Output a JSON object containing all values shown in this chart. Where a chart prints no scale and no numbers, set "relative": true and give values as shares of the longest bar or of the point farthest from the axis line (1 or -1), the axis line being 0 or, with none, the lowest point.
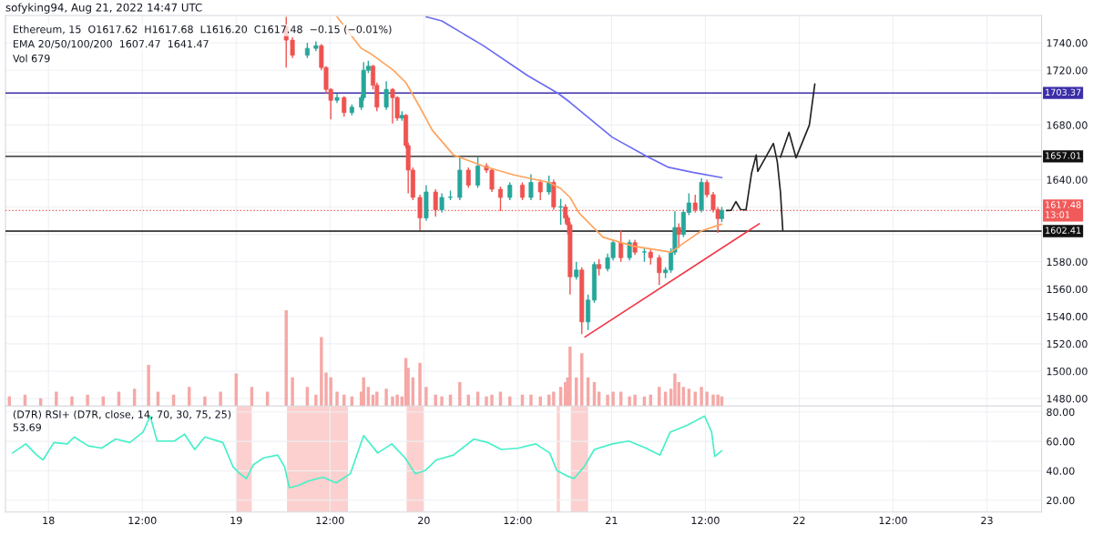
{
  "chart_data": [
    {
      "type": "candlestick",
      "title": "sofyking94, Aug 21, 2022 14:47 UTC",
      "annotations": [
        "Ethereum, 15  O1617.62  H1617.68  L1616.20  C1617.48  −0.15 (−0.01%)",
        "EMA 20/50/100/200  1607.47  1641.47",
        "Vol 679"
      ],
      "x": [
        "2022-08-19T06:24",
        "2022-08-19T07:12",
        "2022-08-19T09:06",
        "2022-08-19T10:12",
        "2022-08-19T10:54",
        "2022-08-19T11:30",
        "2022-08-19T12:06",
        "2022-08-19T12:54",
        "2022-08-19T13:48",
        "2022-08-19T14:48",
        "2022-08-19T16:00",
        "2022-08-19T16:18",
        "2022-08-19T16:54",
        "2022-08-19T17:30",
        "2022-08-19T18:00",
        "2022-08-19T19:12",
        "2022-08-19T20:00",
        "2022-08-19T20:36",
        "2022-08-19T21:12",
        "2022-08-19T21:42",
        "2022-08-19T22:00",
        "2022-08-19T22:36",
        "2022-08-19T23:30",
        "2022-08-20T00:18",
        "2022-08-20T01:30",
        "2022-08-20T02:18",
        "2022-08-20T03:24",
        "2022-08-20T04:36",
        "2022-08-20T05:42",
        "2022-08-20T06:54",
        "2022-08-20T08:00",
        "2022-08-20T08:42",
        "2022-08-20T09:48",
        "2022-08-20T11:00",
        "2022-08-20T12:36",
        "2022-08-20T13:42",
        "2022-08-20T14:54",
        "2022-08-20T16:00",
        "2022-08-20T16:36",
        "2022-08-20T17:30",
        "2022-08-20T18:06",
        "2022-08-20T18:24",
        "2022-08-20T18:42",
        "2022-08-20T19:30",
        "2022-08-20T20:12",
        "2022-08-20T21:00",
        "2022-08-20T21:48",
        "2022-08-20T22:24",
        "2022-08-20T23:30",
        "2022-08-21T00:12",
        "2022-08-21T01:12",
        "2022-08-21T02:18",
        "2022-08-21T03:00",
        "2022-08-21T04:12",
        "2022-08-21T05:00",
        "2022-08-21T06:06",
        "2022-08-21T06:54",
        "2022-08-21T07:36",
        "2022-08-21T08:06",
        "2022-08-21T08:36",
        "2022-08-21T09:12",
        "2022-08-21T09:54",
        "2022-08-21T10:42",
        "2022-08-21T11:30",
        "2022-08-21T12:12",
        "2022-08-21T13:00",
        "2022-08-21T13:36",
        "2022-08-21T14:06"
      ],
      "ohlc": [
        [
          1752,
          1759,
          1722,
          1742
        ],
        [
          1742,
          1744,
          1729,
          1731
        ],
        [
          1731,
          1740,
          1729,
          1736
        ],
        [
          1736,
          1741,
          1734,
          1738
        ],
        [
          1738,
          1739,
          1720,
          1722
        ],
        [
          1722,
          1723,
          1703,
          1706
        ],
        [
          1706,
          1707,
          1684,
          1698
        ],
        [
          1698,
          1703,
          1696,
          1700
        ],
        [
          1700,
          1701,
          1686,
          1689
        ],
        [
          1689,
          1695,
          1687,
          1693
        ],
        [
          1693,
          1702,
          1691,
          1700
        ],
        [
          1700,
          1726,
          1698,
          1720
        ],
        [
          1720,
          1727,
          1718,
          1723
        ],
        [
          1723,
          1724,
          1706,
          1709
        ],
        [
          1709,
          1711,
          1690,
          1693
        ],
        [
          1693,
          1712,
          1691,
          1706
        ],
        [
          1706,
          1707,
          1681,
          1700
        ],
        [
          1700,
          1701,
          1683,
          1685
        ],
        [
          1685,
          1690,
          1683,
          1687
        ],
        [
          1687,
          1688,
          1663,
          1665
        ],
        [
          1665,
          1667,
          1630,
          1647
        ],
        [
          1647,
          1649,
          1625,
          1627
        ],
        [
          1627,
          1629,
          1603,
          1612
        ],
        [
          1612,
          1636,
          1610,
          1631
        ],
        [
          1631,
          1633,
          1613,
          1618
        ],
        [
          1618,
          1630,
          1616,
          1627
        ],
        [
          1627,
          1632,
          1625,
          1627
        ],
        [
          1627,
          1657,
          1625,
          1647
        ],
        [
          1647,
          1649,
          1634,
          1636
        ],
        [
          1636,
          1657,
          1634,
          1650
        ],
        [
          1650,
          1652,
          1645,
          1647
        ],
        [
          1647,
          1648,
          1631,
          1633
        ],
        [
          1633,
          1635,
          1617,
          1627
        ],
        [
          1627,
          1638,
          1625,
          1636
        ],
        [
          1636,
          1638,
          1625,
          1627
        ],
        [
          1627,
          1644,
          1625,
          1638
        ],
        [
          1638,
          1640,
          1625,
          1631
        ],
        [
          1631,
          1643,
          1629,
          1638
        ],
        [
          1638,
          1640,
          1618,
          1620
        ],
        [
          1620,
          1626,
          1607,
          1620
        ],
        [
          1620,
          1622,
          1608,
          1612
        ],
        [
          1612,
          1614,
          1600,
          1607
        ],
        [
          1607,
          1609,
          1556,
          1569
        ],
        [
          1569,
          1580,
          1567,
          1574
        ],
        [
          1574,
          1576,
          1527,
          1536
        ],
        [
          1536,
          1556,
          1530,
          1552
        ],
        [
          1552,
          1580,
          1550,
          1578
        ],
        [
          1578,
          1582,
          1570,
          1575
        ],
        [
          1575,
          1586,
          1573,
          1583
        ],
        [
          1583,
          1596,
          1581,
          1594
        ],
        [
          1594,
          1603,
          1580,
          1583
        ],
        [
          1583,
          1596,
          1581,
          1594
        ],
        [
          1594,
          1596,
          1585,
          1587
        ],
        [
          1587,
          1590,
          1580,
          1587
        ],
        [
          1587,
          1589,
          1578,
          1583
        ],
        [
          1583,
          1585,
          1563,
          1572
        ],
        [
          1572,
          1576,
          1568,
          1574
        ],
        [
          1574,
          1590,
          1572,
          1587
        ],
        [
          1587,
          1617,
          1585,
          1605
        ],
        [
          1605,
          1608,
          1590,
          1600
        ],
        [
          1600,
          1618,
          1598,
          1616
        ],
        [
          1616,
          1630,
          1614,
          1623
        ],
        [
          1623,
          1629,
          1616,
          1618
        ],
        [
          1618,
          1641,
          1616,
          1638
        ],
        [
          1638,
          1640,
          1627,
          1629
        ],
        [
          1629,
          1631,
          1616,
          1618
        ],
        [
          1618,
          1620,
          1601,
          1611.5
        ],
        [
          1611.5,
          1620,
          1609,
          1617.48
        ]
      ],
      "colors": [
        "#ef5350",
        "#ef5350",
        "#26a69a",
        "#26a69a",
        "#ef5350",
        "#ef5350",
        "#ef5350",
        "#26a69a",
        "#ef5350",
        "#26a69a",
        "#26a69a",
        "#26a69a",
        "#26a69a",
        "#ef5350",
        "#ef5350",
        "#26a69a",
        "#ef5350",
        "#ef5350",
        "#26a69a",
        "#ef5350",
        "#ef5350",
        "#ef5350",
        "#ef5350",
        "#26a69a",
        "#ef5350",
        "#26a69a",
        "#26a69a",
        "#26a69a",
        "#ef5350",
        "#26a69a",
        "#ef5350",
        "#ef5350",
        "#ef5350",
        "#26a69a",
        "#ef5350",
        "#26a69a",
        "#ef5350",
        "#26a69a",
        "#ef5350",
        "#26a69a",
        "#ef5350",
        "#ef5350",
        "#ef5350",
        "#26a69a",
        "#ef5350",
        "#26a69a",
        "#26a69a",
        "#ef5350",
        "#26a69a",
        "#26a69a",
        "#ef5350",
        "#26a69a",
        "#ef5350",
        "#26a69a",
        "#ef5350",
        "#ef5350",
        "#26a69a",
        "#26a69a",
        "#26a69a",
        "#ef5350",
        "#26a69a",
        "#26a69a",
        "#ef5350",
        "#26a69a",
        "#ef5350",
        "#ef5350",
        "#ef5350",
        "#26a69a"
      ],
      "series": [
        {
          "type": "line",
          "color": "#ffa35c",
          "x": [
            "2022-08-19T12:54",
            "2022-08-19T16:00",
            "2022-08-19T17:06",
            "2022-08-19T20:06",
            "2022-08-19T21:42",
            "2022-08-19T23:12",
            "2022-08-20T01:06",
            "2022-08-20T03:48",
            "2022-08-20T07:36",
            "2022-08-20T11:30",
            "2022-08-20T16:00",
            "2022-08-20T17:30",
            "2022-08-20T18:42",
            "2022-08-20T19:48",
            "2022-08-20T22:54",
            "2022-08-21T02:42",
            "2022-08-21T06:30",
            "2022-08-21T07:36",
            "2022-08-21T09:12",
            "2022-08-21T11:30",
            "2022-08-21T14:06"
          ],
          "values": [
            1759,
            1736,
            1732.5,
            1720,
            1711,
            1696,
            1676,
            1658,
            1650,
            1643.5,
            1638,
            1633.5,
            1627,
            1616,
            1598,
            1591.5,
            1588,
            1587,
            1593.5,
            1602.6,
            1607.47
          ]
        },
        {
          "type": "line",
          "color": "#6b6bf5",
          "x": [
            "2022-08-20T00:18",
            "2022-08-20T02:18",
            "2022-08-20T07:36",
            "2022-08-20T13:18",
            "2022-08-20T17:12",
            "2022-08-20T18:42",
            "2022-08-21T00:06",
            "2022-08-21T04:36",
            "2022-08-21T07:18",
            "2022-08-21T11:00",
            "2022-08-21T14:06"
          ],
          "values": [
            1759,
            1756,
            1738,
            1716,
            1703,
            1696.5,
            1671,
            1656.8,
            1649,
            1644.7,
            1641.47
          ]
        },
        {
          "type": "line",
          "color": "#f23645",
          "x": [
            "2022-08-20T20:36",
            "2022-08-21T18:54"
          ],
          "values": [
            1525,
            1607.8
          ]
        },
        {
          "type": "line",
          "color": "#222222",
          "x": [
            "2022-08-21T14:42",
            "2022-08-21T15:18",
            "2022-08-21T15:54",
            "2022-08-21T16:30",
            "2022-08-21T17:12",
            "2022-08-21T17:54",
            "2022-08-21T18:30",
            "2022-08-21T18:42",
            "2022-08-21T20:42",
            "2022-08-21T21:12",
            "2022-08-21T21:36",
            "2022-08-21T21:54"
          ],
          "values": [
            1617.4,
            1617.6,
            1624,
            1618.2,
            1618,
            1644.6,
            1658,
            1646,
            1666.5,
            1653,
            1631,
            1603
          ]
        },
        {
          "type": "line",
          "color": "#222222",
          "x": [
            "2022-08-21T21:36",
            "2022-08-21T22:42",
            "2022-08-21T23:36",
            "2022-08-22T01:18",
            "2022-08-22T02:00"
          ],
          "values": [
            1656.5,
            1674.6,
            1656,
            1680,
            1710
          ]
        }
      ],
      "ref_lines": [
        {
          "axis": "y",
          "value": 1703.37,
          "label": "1703.37",
          "color": "#3c2fa8"
        },
        {
          "axis": "y",
          "value": 1657.01,
          "label": "1657.01",
          "color": "#111111"
        },
        {
          "axis": "y",
          "value": 1602.41,
          "label": "1602.41",
          "color": "#111111"
        },
        {
          "axis": "y",
          "value": 1617.48,
          "label": "1617.48\n13:01",
          "color": "#f05a5a",
          "line_style": "dotted"
        }
      ],
      "xlim": [
        "2022-08-17T18:30",
        "2022-08-23T07:00"
      ],
      "xticks": [
        {
          "value": "2022-08-18T00:00",
          "label": null
        },
        {
          "value": "2022-08-18T12:00",
          "label": null
        },
        {
          "value": "2022-08-19T00:00",
          "label": null
        },
        {
          "value": "2022-08-19T12:00",
          "label": null
        },
        {
          "value": "2022-08-20T00:00",
          "label": null
        },
        {
          "value": "2022-08-20T12:00",
          "label": null
        },
        {
          "value": "2022-08-21T00:00",
          "label": null
        },
        {
          "value": "2022-08-21T12:00",
          "label": null
        },
        {
          "value": "2022-08-22T00:00",
          "label": null
        },
        {
          "value": "2022-08-22T12:00",
          "label": null
        },
        {
          "value": "2022-08-23T00:00",
          "label": null
        }
      ],
      "ylim": [
        1474.5,
        1760
      ],
      "yticks": [
        {
          "value": 1480,
          "label": "1480.00"
        },
        {
          "value": 1500,
          "label": "1500.00"
        },
        {
          "value": 1520,
          "label": "1520.00"
        },
        {
          "value": 1540,
          "label": "1540.00"
        },
        {
          "value": 1560,
          "label": "1560.00"
        },
        {
          "value": 1580,
          "label": "1580.00"
        },
        {
          "value": 1600,
          "label": null
        },
        {
          "value": 1620,
          "label": null
        },
        {
          "value": 1640,
          "label": "1640.00"
        },
        {
          "value": 1660,
          "label": null
        },
        {
          "value": 1680,
          "label": "1680.00"
        },
        {
          "value": 1700,
          "label": null
        },
        {
          "value": 1720,
          "label": "1720.00"
        },
        {
          "value": 1740,
          "label": "1740.00"
        }
      ],
      "grid": true,
      "tick_labels": "y"
    },
    {
      "type": "bar",
      "relative": true,
      "color": "#f5a8a6",
      "x": [
        "2022-08-17T19:00",
        "2022-08-17T21:00",
        "2022-08-17T23:00",
        "2022-08-18T01:00",
        "2022-08-18T03:00",
        "2022-08-18T05:00",
        "2022-08-18T07:00",
        "2022-08-18T09:00",
        "2022-08-18T11:00",
        "2022-08-18T12:48",
        "2022-08-18T14:00",
        "2022-08-18T16:00",
        "2022-08-18T18:00",
        "2022-08-18T20:00",
        "2022-08-18T22:00",
        "2022-08-19T00:00",
        "2022-08-19T02:00",
        "2022-08-19T04:00",
        "2022-08-19T06:24",
        "2022-08-19T07:12",
        "2022-08-19T09:06",
        "2022-08-19T10:12",
        "2022-08-19T10:54",
        "2022-08-19T11:30",
        "2022-08-19T12:06",
        "2022-08-19T12:54",
        "2022-08-19T13:48",
        "2022-08-19T14:48",
        "2022-08-19T16:00",
        "2022-08-19T16:18",
        "2022-08-19T16:54",
        "2022-08-19T17:30",
        "2022-08-19T18:00",
        "2022-08-19T19:12",
        "2022-08-19T20:00",
        "2022-08-19T20:36",
        "2022-08-19T21:12",
        "2022-08-19T21:42",
        "2022-08-19T22:00",
        "2022-08-19T22:36",
        "2022-08-19T23:30",
        "2022-08-20T00:18",
        "2022-08-20T01:30",
        "2022-08-20T02:18",
        "2022-08-20T03:24",
        "2022-08-20T04:36",
        "2022-08-20T05:42",
        "2022-08-20T06:54",
        "2022-08-20T08:00",
        "2022-08-20T08:42",
        "2022-08-20T09:48",
        "2022-08-20T11:00",
        "2022-08-20T12:36",
        "2022-08-20T13:42",
        "2022-08-20T14:54",
        "2022-08-20T16:00",
        "2022-08-20T16:36",
        "2022-08-20T17:30",
        "2022-08-20T18:06",
        "2022-08-20T18:24",
        "2022-08-20T18:42",
        "2022-08-20T19:30",
        "2022-08-20T20:12",
        "2022-08-20T21:00",
        "2022-08-20T21:48",
        "2022-08-20T22:24",
        "2022-08-20T23:30",
        "2022-08-21T00:12",
        "2022-08-21T01:12",
        "2022-08-21T02:18",
        "2022-08-21T03:00",
        "2022-08-21T04:12",
        "2022-08-21T05:00",
        "2022-08-21T06:06",
        "2022-08-21T06:54",
        "2022-08-21T07:36",
        "2022-08-21T08:06",
        "2022-08-21T08:36",
        "2022-08-21T09:12",
        "2022-08-21T09:54",
        "2022-08-21T10:42",
        "2022-08-21T11:30",
        "2022-08-21T12:12",
        "2022-08-21T13:00",
        "2022-08-21T13:36",
        "2022-08-21T14:06"
      ],
      "values": [
        0.1,
        0.12,
        0.08,
        0.15,
        0.1,
        0.12,
        0.1,
        0.15,
        0.18,
        0.43,
        0.15,
        0.12,
        0.2,
        0.1,
        0.15,
        0.34,
        0.2,
        0.15,
        1.0,
        0.3,
        0.2,
        0.12,
        0.72,
        0.35,
        0.3,
        0.15,
        0.12,
        0.1,
        0.15,
        0.3,
        0.2,
        0.12,
        0.15,
        0.18,
        0.1,
        0.12,
        0.1,
        0.5,
        0.4,
        0.3,
        0.45,
        0.2,
        0.12,
        0.1,
        0.12,
        0.25,
        0.12,
        0.15,
        0.1,
        0.12,
        0.15,
        0.1,
        0.12,
        0.12,
        0.1,
        0.12,
        0.15,
        0.2,
        0.25,
        0.3,
        0.62,
        0.3,
        0.55,
        0.3,
        0.25,
        0.15,
        0.12,
        0.15,
        0.15,
        0.1,
        0.12,
        0.1,
        0.12,
        0.2,
        0.15,
        0.18,
        0.34,
        0.25,
        0.2,
        0.18,
        0.15,
        0.2,
        0.15,
        0.12,
        0.12,
        0.1
      ],
      "xlim": [
        "2022-08-17T18:30",
        "2022-08-23T07:00"
      ],
      "tick_labels": false
    },
    {
      "type": "line",
      "title": "(D7R) RSI+ (D7R, close, 14, 70, 30, 75, 25)",
      "annotations": [
        "53.69"
      ],
      "series": [
        {
          "color": "#45f0c8",
          "x": [
            "2022-08-17T19:24",
            "2022-08-17T21:06",
            "2022-08-17T22:30",
            "2022-08-17T23:18",
            "2022-08-18T00:42",
            "2022-08-18T02:24",
            "2022-08-18T03:18",
            "2022-08-18T05:06",
            "2022-08-18T06:48",
            "2022-08-18T08:36",
            "2022-08-18T10:24",
            "2022-08-18T12:06",
            "2022-08-18T13:00",
            "2022-08-18T13:54",
            "2022-08-18T16:06",
            "2022-08-18T17:24",
            "2022-08-18T18:42",
            "2022-08-18T20:00",
            "2022-08-18T22:18",
            "2022-08-18T23:36",
            "2022-08-19T00:30",
            "2022-08-19T01:18",
            "2022-08-19T02:12",
            "2022-08-19T03:30",
            "2022-08-19T05:18",
            "2022-08-19T06:12",
            "2022-08-19T06:48",
            "2022-08-19T07:54",
            "2022-08-19T09:18",
            "2022-08-19T11:06",
            "2022-08-19T12:48",
            "2022-08-19T14:36",
            "2022-08-19T16:18",
            "2022-08-19T18:06",
            "2022-08-19T19:54",
            "2022-08-19T21:36",
            "2022-08-19T22:54",
            "2022-08-20T00:12",
            "2022-08-20T01:36",
            "2022-08-20T03:48",
            "2022-08-20T06:24",
            "2022-08-20T08:12",
            "2022-08-20T09:54",
            "2022-08-20T12:06",
            "2022-08-20T14:18",
            "2022-08-20T16:06",
            "2022-08-20T17:00",
            "2022-08-20T18:18",
            "2022-08-20T19:12",
            "2022-08-20T20:30",
            "2022-08-20T21:48",
            "2022-08-21T00:06",
            "2022-08-21T02:12",
            "2022-08-21T04:24",
            "2022-08-21T06:12",
            "2022-08-21T07:30",
            "2022-08-21T09:42",
            "2022-08-21T11:54",
            "2022-08-21T12:48",
            "2022-08-21T13:12",
            "2022-08-21T14:06"
          ],
          "values": [
            52.1,
            58.3,
            50.7,
            47.4,
            59.2,
            58.3,
            63.0,
            56.9,
            55.4,
            61.6,
            59.2,
            66.3,
            77.2,
            60.2,
            60.2,
            64.9,
            54.5,
            63.0,
            59.2,
            42.7,
            38.0,
            34.7,
            44.1,
            48.8,
            50.7,
            42.7,
            28.5,
            29.9,
            33.2,
            35.6,
            31.8,
            38.0,
            63.9,
            52.1,
            58.3,
            48.8,
            38.0,
            40.3,
            47.4,
            50.7,
            61.6,
            59.2,
            54.5,
            55.4,
            58.3,
            52.1,
            40.3,
            36.5,
            34.7,
            42.7,
            54.5,
            58.3,
            60.2,
            55.4,
            50.7,
            66.3,
            71.0,
            77.2,
            66.3,
            49.8,
            53.69
          ]
        }
      ],
      "bands": [
        {
          "axis": "x",
          "from": "2022-08-19T00:00",
          "to": "2022-08-19T02:00",
          "color": "#fbd0ce"
        },
        {
          "axis": "x",
          "from": "2022-08-19T06:30",
          "to": "2022-08-19T14:18",
          "color": "#fbd0ce"
        },
        {
          "axis": "x",
          "from": "2022-08-19T21:48",
          "to": "2022-08-20T00:00",
          "color": "#fbd0ce"
        },
        {
          "axis": "x",
          "from": "2022-08-20T17:00",
          "to": "2022-08-20T17:24",
          "color": "#fbd0ce"
        },
        {
          "axis": "x",
          "from": "2022-08-20T18:48",
          "to": "2022-08-20T21:00",
          "color": "#fbd0ce"
        }
      ],
      "xlim": [
        "2022-08-17T18:30",
        "2022-08-23T07:00"
      ],
      "xticks": [
        {
          "value": "2022-08-18T00:00",
          "label": "18"
        },
        {
          "value": "2022-08-18T12:00",
          "label": "12:00"
        },
        {
          "value": "2022-08-19T00:00",
          "label": "19"
        },
        {
          "value": "2022-08-19T12:00",
          "label": "12:00"
        },
        {
          "value": "2022-08-20T00:00",
          "label": "20"
        },
        {
          "value": "2022-08-20T12:00",
          "label": "12:00"
        },
        {
          "value": "2022-08-21T00:00",
          "label": "21"
        },
        {
          "value": "2022-08-21T12:00",
          "label": "12:00"
        },
        {
          "value": "2022-08-22T00:00",
          "label": "22"
        },
        {
          "value": "2022-08-22T12:00",
          "label": "12:00"
        },
        {
          "value": "2022-08-23T00:00",
          "label": "23"
        }
      ],
      "ylim": [
        12,
        84
      ],
      "yticks": [
        {
          "value": 20,
          "label": "20.00"
        },
        {
          "value": 40,
          "label": "40.00"
        },
        {
          "value": 60,
          "label": "60.00"
        },
        {
          "value": 80,
          "label": "80.00"
        }
      ],
      "grid": true
    }
  ]
}
